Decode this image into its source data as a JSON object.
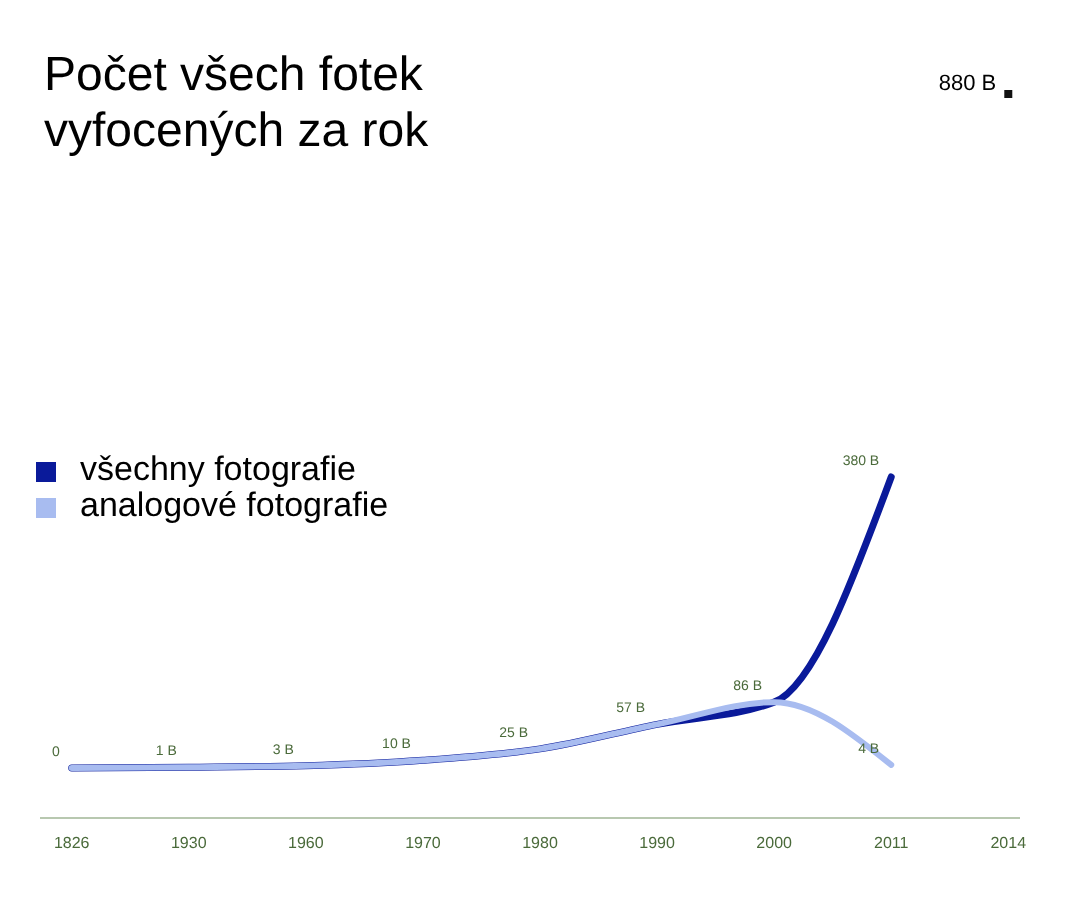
{
  "chart_data": {
    "type": "line",
    "title": "Počet všech fotek vyfocených za rok",
    "categories": [
      "1826",
      "1930",
      "1960",
      "1970",
      "1980",
      "1990",
      "2000",
      "2011",
      "2014"
    ],
    "series": [
      {
        "name": "všechny fotografie",
        "color": "#0a1a9a",
        "values": [
          0,
          1,
          3,
          10,
          25,
          57,
          86,
          380,
          null
        ],
        "value_labels": [
          "0",
          "1 B",
          "3 B",
          "10 B",
          "25 B",
          "57 B",
          "86 B",
          "380 B",
          null
        ]
      },
      {
        "name": "analogové fotografie",
        "color": "#a8bcf0",
        "values": [
          0,
          1,
          3,
          10,
          25,
          57,
          86,
          4,
          null
        ],
        "value_labels": [
          null,
          null,
          null,
          null,
          null,
          null,
          null,
          "4 B",
          null
        ]
      },
      {
        "type": "scatter",
        "marker": "square",
        "color": "#111111",
        "values": [
          null,
          null,
          null,
          null,
          null,
          null,
          null,
          null,
          880
        ],
        "value_labels": [
          null,
          null,
          null,
          null,
          null,
          null,
          null,
          null,
          "880 B"
        ]
      }
    ],
    "tick_labels": "x",
    "legend": "left",
    "grid": false
  }
}
